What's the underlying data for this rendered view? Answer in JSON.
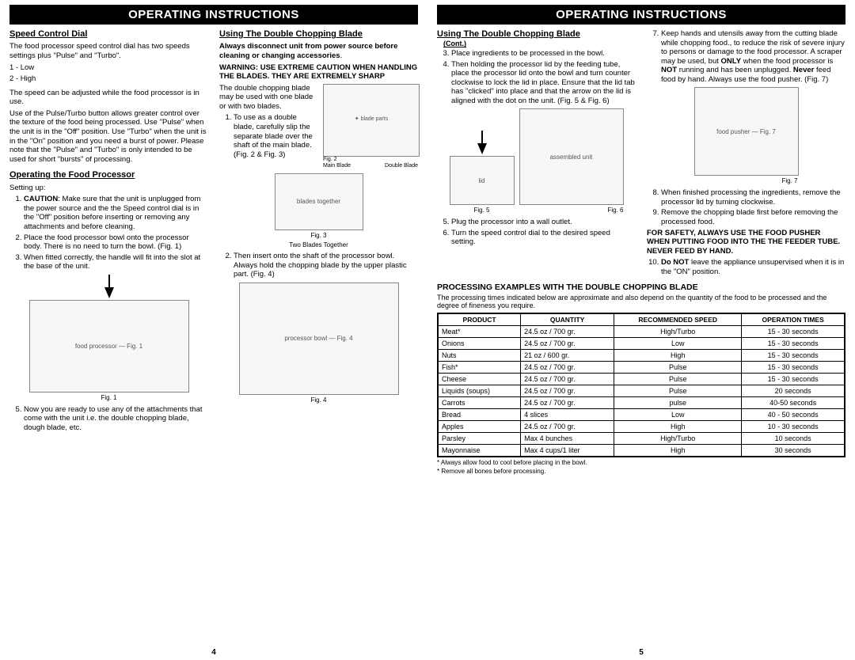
{
  "header": "OPERATING INSTRUCTIONS",
  "page4": {
    "num": "4",
    "col1": {
      "speed_title": "Speed Control Dial",
      "speed_p1": "The food processor speed control dial has two speeds settings plus \"Pulse\" and \"Turbo\".",
      "speed_list1": "1 - Low",
      "speed_list2": "2 - High",
      "speed_p2": "The speed can be adjusted while the food processor is in use.",
      "speed_p3": "Use of the Pulse/Turbo button allows greater control over the texture of the food being processed. Use \"Pulse\" when the unit is in the \"Off\" position. Use \"Turbo\" when the unit is in the \"On\" position and you need a burst of power. Please note that the \"Pulse\" and \"Turbo\" is only intended to be used for short \"bursts\" of processing.",
      "op_title": "Operating the Food Processor",
      "op_setup": "Setting up:",
      "op_li1_b": "CAUTION",
      "op_li1": ": Make sure that the unit is unplugged from the power source and the the Speed control dial is in the \"Off\" position before inserting or removing any attachments and before cleaning.",
      "op_li2": "Place the food processor bowl onto the processor body. There is no need to turn the bowl. (Fig. 1)",
      "op_li3": "When fitted correctly, the handle will fit into the slot at the base of the unit.",
      "fig1_cap": "Fig. 1",
      "op_li5": "Now you are ready to use any of the attachments that come with the unit i.e. the double chopping blade, dough blade, etc."
    },
    "col2": {
      "dbl_title": "Using The Double Chopping Blade",
      "dbl_b1": "Always disconnect unit from power source before cleaning or changing accessories",
      "dbl_b1_end": ".",
      "dbl_b2": "WARNING: USE EXTREME CAUTION WHEN HANDLING THE BLADES. THEY ARE EXTREMELY SHARP",
      "dbl_p1": "The double chopping blade may be used with one blade or with two blades.",
      "dbl_li1": "To use as a double blade, carefully slip the separate blade over the shaft of the main blade. (Fig. 2 & Fig. 3)",
      "fig2_label": "Fig. 2",
      "fig2_main": "Main Blade",
      "fig2_dbl": "Double Blade",
      "fig3_label": "Fig. 3",
      "fig3_two": "Two Blades Together",
      "dbl_li2": "Then insert onto the shaft of the processor bowl. Always hold the chopping blade by the upper plastic part. (Fig. 4)",
      "fig4_label": "Fig. 4"
    }
  },
  "page5": {
    "num": "5",
    "col1": {
      "dbl_title": "Using The Double Chopping Blade",
      "cont": "(Cont.)",
      "li3": "Place ingredients to be processed in the bowl.",
      "li4": "Then holding the processor lid by the feeding tube, place the processor lid onto the bowl  and turn counter clockwise to lock the lid in place. Ensure that the lid tab has \"clicked\" into place and that the arrow on the lid is aligned with the dot on the unit. (Fig. 5 & Fig. 6)",
      "fig5_label": "Fig. 5",
      "fig6_label": "Fig. 6",
      "li5": "Plug the processor into a wall outlet.",
      "li6": "Turn the speed control dial to the desired speed setting."
    },
    "col2": {
      "li7a": "Keep hands and utensils away from the cutting blade while chopping food., to reduce the risk of severe injury to persons or damage to the food processor. A scraper may be used, but ",
      "only": "ONLY",
      "li7b": " when the food processor is ",
      "not": "NOT",
      "li7c": " running and has been unplugged. ",
      "never": "Never",
      "li7d": " feed food by hand. Always use the food pusher. (Fig. 7)",
      "fig7_label": "Fig. 7",
      "li8": "When finished processing the ingredients, remove the processor lid by turning clockwise.",
      "li9": "Remove the chopping blade first before removing the processed food.",
      "safety": "FOR SAFETY, ALWAYS USE THE FOOD PUSHER WHEN PUTTING FOOD INTO THE THE FEEDER TUBE. NEVER FEED BY HAND.",
      "li10_b": "Do NOT",
      "li10": " leave the appliance unsupervised when it is in the \"ON\" position."
    },
    "proc": {
      "title": "PROCESSING EXAMPLES WITH THE DOUBLE CHOPPING BLADE",
      "desc": "The processing times indicated below are approximate and also depend on the quantity of the food to be processed and the degree of fineness you require.",
      "h1": "PRODUCT",
      "h2": "QUANTITY",
      "h3": "RECOMMENDED SPEED",
      "h4": "OPERATION TIMES",
      "rows": [
        [
          "Meat*",
          "24.5 oz / 700 gr.",
          "High/Turbo",
          "15 - 30 seconds"
        ],
        [
          "Onions",
          "24.5 oz / 700 gr.",
          "Low",
          "15 - 30 seconds"
        ],
        [
          "Nuts",
          "21 oz / 600 gr.",
          "High",
          "15 - 30 seconds"
        ],
        [
          "Fish*",
          "24.5 oz / 700 gr.",
          "Pulse",
          "15 - 30 seconds"
        ],
        [
          "Cheese",
          "24.5 oz / 700 gr.",
          "Pulse",
          "15 - 30 seconds"
        ],
        [
          "Liquids (soups)",
          "24.5 oz / 700 gr.",
          "Pulse",
          "20 seconds"
        ],
        [
          "Carrots",
          "24.5 oz / 700 gr.",
          "pulse",
          "40-50 seconds"
        ],
        [
          "Bread",
          "4 slices",
          "Low",
          "40 - 50 seconds"
        ],
        [
          "Apples",
          "24.5 oz / 700 gr.",
          "High",
          "10 - 30 seconds"
        ],
        [
          "Parsley",
          "Max 4 bunches",
          "High/Turbo",
          "10 seconds"
        ],
        [
          "Mayonnaise",
          "Max 4 cups/1 liter",
          "High",
          "30 seconds"
        ]
      ],
      "fn1": "* Always allow food to cool before placing in the bowl.",
      "fn2": "* Remove all bones before processing."
    }
  }
}
